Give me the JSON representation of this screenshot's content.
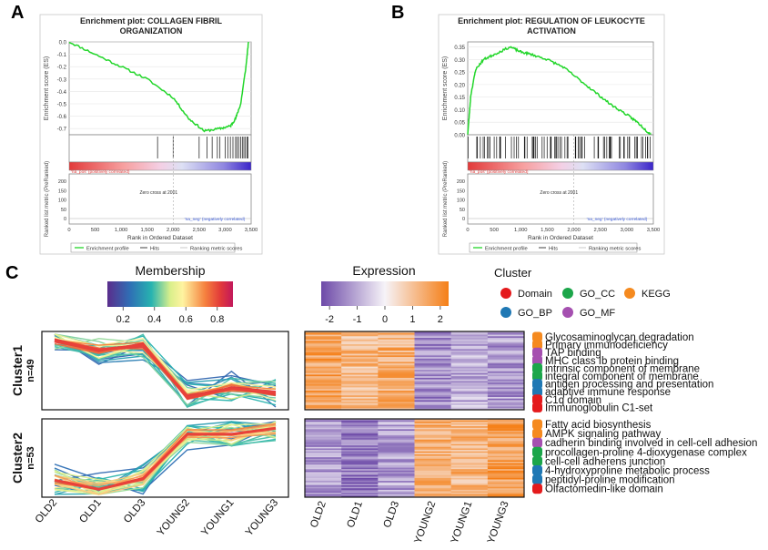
{
  "panels": {
    "A": {
      "letter": "A"
    },
    "B": {
      "letter": "B"
    },
    "C": {
      "letter": "C"
    }
  },
  "chart_data": [
    {
      "panel": "A",
      "type": "line",
      "title_line1": "Enrichment plot: COLLAGEN FIBRIL",
      "title_line2": "ORGANIZATION",
      "ylabel": "Enrichment score (ES)",
      "ylim": [
        -0.75,
        0.0
      ],
      "yticks": [
        "0.0",
        "-0.1",
        "-0.2",
        "-0.3",
        "-0.4",
        "-0.5",
        "-0.6",
        "-0.7"
      ],
      "x": [
        0,
        500,
        1000,
        1500,
        2000,
        2300,
        2600,
        2900,
        3100,
        3200,
        3300,
        3400,
        3450
      ],
      "es": [
        0.0,
        -0.1,
        -0.2,
        -0.3,
        -0.45,
        -0.62,
        -0.72,
        -0.7,
        -0.68,
        -0.62,
        -0.5,
        -0.2,
        0.0
      ],
      "hits": [
        1700,
        2000,
        2500,
        2650,
        2750,
        2850,
        2900,
        3000,
        3050,
        3100,
        3150,
        3200,
        3230,
        3260,
        3300,
        3330,
        3360,
        3390,
        3420,
        3440
      ],
      "pos_label": "'na_pos' (positively correlated)",
      "neg_label": "'na_neg' (negatively correlated)",
      "zero_cross": "Zero cross at 2001",
      "metric_ylabel": "Ranked list metric (PreRanked)",
      "metric_yticks": [
        "200",
        "150",
        "100",
        "50",
        "0"
      ],
      "xlabel": "Rank in Ordered Dataset",
      "xticks": [
        "0",
        "500",
        "1,000",
        "1,500",
        "2,000",
        "2,500",
        "3,000",
        "3,500"
      ],
      "xlim": [
        0,
        3500
      ],
      "legend": [
        "Enrichment profile",
        "Hits",
        "Ranking metric scores"
      ]
    },
    {
      "panel": "B",
      "type": "line",
      "title_line1": "Enrichment plot: REGULATION OF LEUKOCYTE",
      "title_line2": "ACTIVATION",
      "ylabel": "Enrichment score (ES)",
      "ylim": [
        0.0,
        0.37
      ],
      "yticks": [
        "0.35",
        "0.30",
        "0.25",
        "0.20",
        "0.15",
        "0.10",
        "0.05",
        "0.00"
      ],
      "x": [
        0,
        60,
        150,
        300,
        500,
        800,
        1000,
        1200,
        1500,
        1800,
        2100,
        2400,
        2700,
        3000,
        3200,
        3400,
        3450
      ],
      "es": [
        0.0,
        0.16,
        0.26,
        0.3,
        0.32,
        0.35,
        0.33,
        0.32,
        0.3,
        0.27,
        0.22,
        0.17,
        0.12,
        0.08,
        0.05,
        0.01,
        0.0
      ],
      "hits_range": [
        0,
        3450
      ],
      "hits_count": 80,
      "pos_label": "'na_pos' (positively correlated)",
      "neg_label": "'na_neg' (negatively correlated)",
      "zero_cross": "Zero cross at 2001",
      "metric_ylabel": "Ranked list metric (PreRanked)",
      "metric_yticks": [
        "200",
        "150",
        "100",
        "50",
        "0"
      ],
      "xlabel": "Rank in Ordered Dataset",
      "xticks": [
        "0",
        "500",
        "1,000",
        "1,500",
        "2,000",
        "2,500",
        "3,000",
        "3,500"
      ],
      "xlim": [
        0,
        3500
      ],
      "legend": [
        "Enrichment profile",
        "Hits",
        "Ranking metric scores"
      ]
    },
    {
      "panel": "C",
      "type": "line",
      "categories": [
        "OLD2",
        "OLD1",
        "OLD3",
        "YOUNG2",
        "YOUNG1",
        "YOUNG3"
      ],
      "membership_title": "Membership",
      "membership_ticks": [
        "0.2",
        "0.4",
        "0.6",
        "0.8"
      ],
      "membership_range": [
        0.1,
        0.9
      ],
      "expression_title": "Expression",
      "expression_ticks": [
        "-2",
        "-1",
        "0",
        "1",
        "2"
      ],
      "expression_range": [
        -2.3,
        2.3
      ],
      "cluster_legend_title": "Cluster",
      "cluster_types": [
        {
          "name": "Domain",
          "color": "#e41a1c"
        },
        {
          "name": "GO_CC",
          "color": "#1ca64a"
        },
        {
          "name": "KEGG",
          "color": "#f58a1f"
        },
        {
          "name": "GO_BP",
          "color": "#1f78b4"
        },
        {
          "name": "GO_MF",
          "color": "#a550b0"
        }
      ],
      "clusters": [
        {
          "name": "Cluster1",
          "count": "n=49",
          "center": [
            1.0,
            0.7,
            0.85,
            -0.9,
            -0.6,
            -0.75
          ],
          "terms": [
            {
              "label": "Glycosaminoglycan degradation",
              "color": "#f58a1f"
            },
            {
              "label": "Primary immunodeficiency",
              "color": "#f58a1f"
            },
            {
              "label": "TAP binding",
              "color": "#a550b0"
            },
            {
              "label": "MHC class Ib protein binding",
              "color": "#a550b0"
            },
            {
              "label": "intrinsic component of membrane",
              "color": "#1ca64a"
            },
            {
              "label": "integral component of membrane",
              "color": "#1ca64a"
            },
            {
              "label": "antigen processing and presentation",
              "color": "#1f78b4"
            },
            {
              "label": "adaptive immune response",
              "color": "#1f78b4"
            },
            {
              "label": "C1q domain",
              "color": "#e41a1c"
            },
            {
              "label": "Immunoglobulin C1-set",
              "color": "#e41a1c"
            }
          ]
        },
        {
          "name": "Cluster2",
          "count": "n=53",
          "center": [
            -0.75,
            -1.05,
            -0.7,
            0.8,
            0.8,
            1.0
          ],
          "terms": [
            {
              "label": "Fatty acid biosynthesis",
              "color": "#f58a1f"
            },
            {
              "label": "AMPK signaling pathway",
              "color": "#f58a1f"
            },
            {
              "label": "cadherin binding involved in cell-cell adhesion",
              "color": "#a550b0"
            },
            {
              "label": "procollagen-proline 4-dioxygenase complex",
              "color": "#1ca64a"
            },
            {
              "label": "cell-cell adherens junction",
              "color": "#1ca64a"
            },
            {
              "label": "4-hydroxyproline metabolic process",
              "color": "#1f78b4"
            },
            {
              "label": "peptidyl-proline modification",
              "color": "#1f78b4"
            },
            {
              "label": "Olfactomedin-like domain",
              "color": "#e41a1c"
            }
          ]
        }
      ]
    }
  ]
}
